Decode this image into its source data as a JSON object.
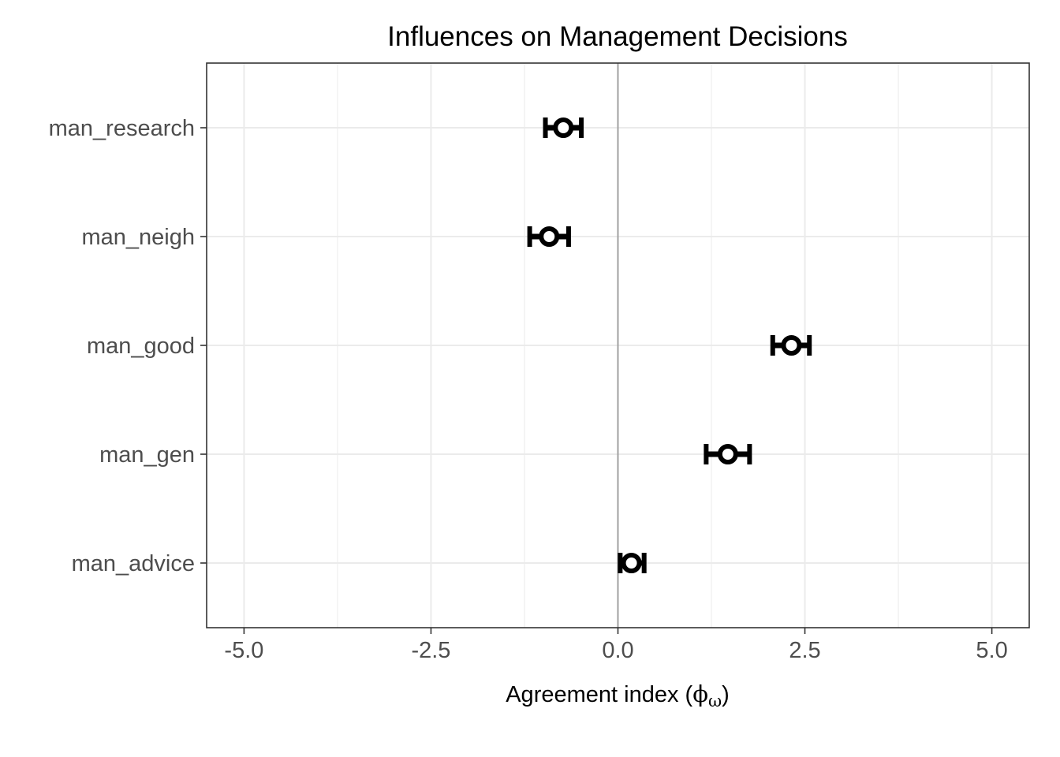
{
  "chart_data": {
    "type": "scatter",
    "title": "Influences on Management Decisions",
    "xlabel": {
      "text": "Agreement index (",
      "symbol": "ϕ",
      "subscript": "ω",
      "close": ")"
    },
    "ylabel": "",
    "xlim": [
      -5.5,
      5.5
    ],
    "x_ticks": [
      {
        "value": -5.0,
        "label": "-5.0"
      },
      {
        "value": -2.5,
        "label": "-2.5"
      },
      {
        "value": 0.0,
        "label": "0.0"
      },
      {
        "value": 2.5,
        "label": "2.5"
      },
      {
        "value": 5.0,
        "label": "5.0"
      }
    ],
    "x_minor_ticks": [
      -3.75,
      -1.25,
      1.25,
      3.75
    ],
    "reference_line_x": 0,
    "grid": true,
    "categories": [
      "man_research",
      "man_neigh",
      "man_good",
      "man_gen",
      "man_advice"
    ],
    "points": [
      {
        "label": "man_research",
        "x": -0.73,
        "lower": -0.97,
        "upper": -0.49
      },
      {
        "label": "man_neigh",
        "x": -0.92,
        "lower": -1.18,
        "upper": -0.66
      },
      {
        "label": "man_good",
        "x": 2.32,
        "lower": 2.07,
        "upper": 2.56
      },
      {
        "label": "man_gen",
        "x": 1.47,
        "lower": 1.18,
        "upper": 1.76
      },
      {
        "label": "man_advice",
        "x": 0.18,
        "lower": 0.03,
        "upper": 0.35
      }
    ],
    "colors": {
      "marker": "#000000",
      "marker_fill": "#ffffff",
      "grid": "#ebebeb",
      "panel_border": "#333333",
      "reference_line": "#999999",
      "tick_label": "#4d4d4d"
    }
  }
}
